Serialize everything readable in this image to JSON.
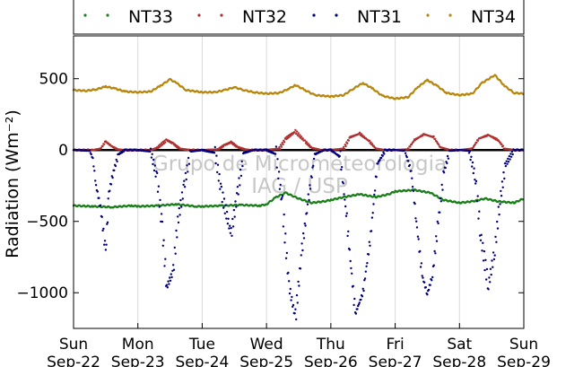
{
  "chart_data": {
    "type": "scatter",
    "ylabel": "Radiation (Wm⁻²)",
    "ylim": [
      -1250,
      800
    ],
    "yticks": [
      500,
      0,
      -500,
      -1000
    ],
    "ytick_labels": [
      "500",
      "0",
      "−500",
      "−1000"
    ],
    "xlim": [
      0,
      7
    ],
    "xticks": [
      0,
      1,
      2,
      3,
      4,
      5,
      6,
      7
    ],
    "xtick_labels": [
      [
        "Sun",
        "Sep-22"
      ],
      [
        "Mon",
        "Sep-23"
      ],
      [
        "Tue",
        "Sep-24"
      ],
      [
        "Wed",
        "Sep-25"
      ],
      [
        "Thu",
        "Sep-26"
      ],
      [
        "Fri",
        "Sep-27"
      ],
      [
        "Sat",
        "Sep-28"
      ],
      [
        "Sun",
        "Sep-29"
      ]
    ],
    "grid": true,
    "legend_position": "top",
    "watermark": [
      "Grupo de Micrometeorologia",
      "IAG / USP"
    ],
    "series": [
      {
        "name": "NT33",
        "color": "#1a7f1a",
        "points": [
          [
            0.0,
            -390
          ],
          [
            0.3,
            -395
          ],
          [
            0.6,
            -400
          ],
          [
            0.9,
            -390
          ],
          [
            1.0,
            -395
          ],
          [
            1.3,
            -390
          ],
          [
            1.6,
            -380
          ],
          [
            1.9,
            -395
          ],
          [
            2.0,
            -395
          ],
          [
            2.3,
            -390
          ],
          [
            2.6,
            -385
          ],
          [
            2.9,
            -390
          ],
          [
            3.0,
            -380
          ],
          [
            3.15,
            -330
          ],
          [
            3.3,
            -300
          ],
          [
            3.5,
            -340
          ],
          [
            3.7,
            -370
          ],
          [
            3.9,
            -360
          ],
          [
            4.0,
            -350
          ],
          [
            4.2,
            -330
          ],
          [
            4.45,
            -310
          ],
          [
            4.7,
            -330
          ],
          [
            4.9,
            -310
          ],
          [
            5.0,
            -290
          ],
          [
            5.3,
            -280
          ],
          [
            5.55,
            -300
          ],
          [
            5.75,
            -350
          ],
          [
            6.0,
            -370
          ],
          [
            6.2,
            -360
          ],
          [
            6.4,
            -340
          ],
          [
            6.6,
            -360
          ],
          [
            6.85,
            -370
          ],
          [
            7.0,
            -340
          ]
        ]
      },
      {
        "name": "NT32",
        "color": "#b03030",
        "points": [
          [
            0.0,
            0
          ],
          [
            0.3,
            0
          ],
          [
            0.42,
            10
          ],
          [
            0.5,
            60
          ],
          [
            0.58,
            30
          ],
          [
            0.68,
            5
          ],
          [
            0.8,
            0
          ],
          [
            1.0,
            0
          ],
          [
            1.2,
            0
          ],
          [
            1.3,
            15
          ],
          [
            1.45,
            70
          ],
          [
            1.55,
            45
          ],
          [
            1.65,
            10
          ],
          [
            1.8,
            0
          ],
          [
            2.0,
            0
          ],
          [
            2.25,
            5
          ],
          [
            2.35,
            35
          ],
          [
            2.45,
            55
          ],
          [
            2.55,
            20
          ],
          [
            2.7,
            0
          ],
          [
            3.0,
            0
          ],
          [
            3.2,
            10
          ],
          [
            3.3,
            80
          ],
          [
            3.45,
            130
          ],
          [
            3.6,
            60
          ],
          [
            3.7,
            15
          ],
          [
            3.85,
            0
          ],
          [
            4.0,
            0
          ],
          [
            4.2,
            10
          ],
          [
            4.3,
            90
          ],
          [
            4.45,
            115
          ],
          [
            4.6,
            60
          ],
          [
            4.7,
            10
          ],
          [
            4.85,
            0
          ],
          [
            5.0,
            0
          ],
          [
            5.2,
            5
          ],
          [
            5.3,
            70
          ],
          [
            5.45,
            110
          ],
          [
            5.6,
            90
          ],
          [
            5.7,
            20
          ],
          [
            5.85,
            0
          ],
          [
            6.0,
            0
          ],
          [
            6.2,
            10
          ],
          [
            6.3,
            80
          ],
          [
            6.45,
            105
          ],
          [
            6.6,
            70
          ],
          [
            6.7,
            10
          ],
          [
            6.85,
            0
          ],
          [
            7.0,
            0
          ]
        ]
      },
      {
        "name": "NT31",
        "color": "#00007f",
        "points": [
          [
            0.0,
            0
          ],
          [
            0.25,
            -5
          ],
          [
            0.3,
            -60
          ],
          [
            0.35,
            -250
          ],
          [
            0.42,
            -400
          ],
          [
            0.5,
            -720
          ],
          [
            0.55,
            -300
          ],
          [
            0.62,
            -150
          ],
          [
            0.7,
            -30
          ],
          [
            0.8,
            0
          ],
          [
            1.0,
            0
          ],
          [
            1.2,
            -10
          ],
          [
            1.3,
            -200
          ],
          [
            1.38,
            -550
          ],
          [
            1.45,
            -960
          ],
          [
            1.55,
            -850
          ],
          [
            1.62,
            -500
          ],
          [
            1.72,
            -250
          ],
          [
            1.82,
            -10
          ],
          [
            2.0,
            0
          ],
          [
            2.2,
            -20
          ],
          [
            2.3,
            -300
          ],
          [
            2.45,
            -590
          ],
          [
            2.55,
            -300
          ],
          [
            2.65,
            -20
          ],
          [
            2.8,
            0
          ],
          [
            3.0,
            0
          ],
          [
            3.15,
            -30
          ],
          [
            3.25,
            -400
          ],
          [
            3.35,
            -950
          ],
          [
            3.45,
            -1180
          ],
          [
            3.55,
            -700
          ],
          [
            3.65,
            -350
          ],
          [
            3.75,
            -30
          ],
          [
            3.9,
            0
          ],
          [
            4.0,
            0
          ],
          [
            4.15,
            -50
          ],
          [
            4.25,
            -500
          ],
          [
            4.38,
            -1150
          ],
          [
            4.5,
            -1000
          ],
          [
            4.62,
            -600
          ],
          [
            4.72,
            -100
          ],
          [
            4.85,
            0
          ],
          [
            5.0,
            0
          ],
          [
            5.15,
            -5
          ],
          [
            5.25,
            -150
          ],
          [
            5.33,
            -500
          ],
          [
            5.42,
            -880
          ],
          [
            5.5,
            -1010
          ],
          [
            5.58,
            -880
          ],
          [
            5.67,
            -500
          ],
          [
            5.76,
            -150
          ],
          [
            5.85,
            -5
          ],
          [
            6.0,
            0
          ],
          [
            6.15,
            -5
          ],
          [
            6.25,
            -200
          ],
          [
            6.33,
            -600
          ],
          [
            6.45,
            -950
          ],
          [
            6.55,
            -700
          ],
          [
            6.63,
            -350
          ],
          [
            6.72,
            -100
          ],
          [
            6.85,
            0
          ],
          [
            7.0,
            0
          ]
        ]
      },
      {
        "name": "NT34",
        "color": "#b8860b",
        "points": [
          [
            0.0,
            420
          ],
          [
            0.2,
            415
          ],
          [
            0.35,
            425
          ],
          [
            0.5,
            445
          ],
          [
            0.65,
            430
          ],
          [
            0.8,
            410
          ],
          [
            1.0,
            405
          ],
          [
            1.2,
            410
          ],
          [
            1.35,
            450
          ],
          [
            1.5,
            495
          ],
          [
            1.6,
            470
          ],
          [
            1.75,
            420
          ],
          [
            2.0,
            405
          ],
          [
            2.2,
            405
          ],
          [
            2.35,
            420
          ],
          [
            2.5,
            440
          ],
          [
            2.65,
            420
          ],
          [
            2.8,
            405
          ],
          [
            3.0,
            395
          ],
          [
            3.2,
            400
          ],
          [
            3.35,
            430
          ],
          [
            3.45,
            455
          ],
          [
            3.6,
            420
          ],
          [
            3.75,
            385
          ],
          [
            4.0,
            375
          ],
          [
            4.2,
            385
          ],
          [
            4.35,
            430
          ],
          [
            4.5,
            470
          ],
          [
            4.65,
            430
          ],
          [
            4.8,
            380
          ],
          [
            5.0,
            360
          ],
          [
            5.2,
            370
          ],
          [
            5.35,
            440
          ],
          [
            5.5,
            490
          ],
          [
            5.65,
            450
          ],
          [
            5.8,
            400
          ],
          [
            6.0,
            385
          ],
          [
            6.2,
            395
          ],
          [
            6.35,
            470
          ],
          [
            6.55,
            525
          ],
          [
            6.7,
            450
          ],
          [
            6.85,
            400
          ],
          [
            7.0,
            395
          ]
        ]
      }
    ]
  }
}
